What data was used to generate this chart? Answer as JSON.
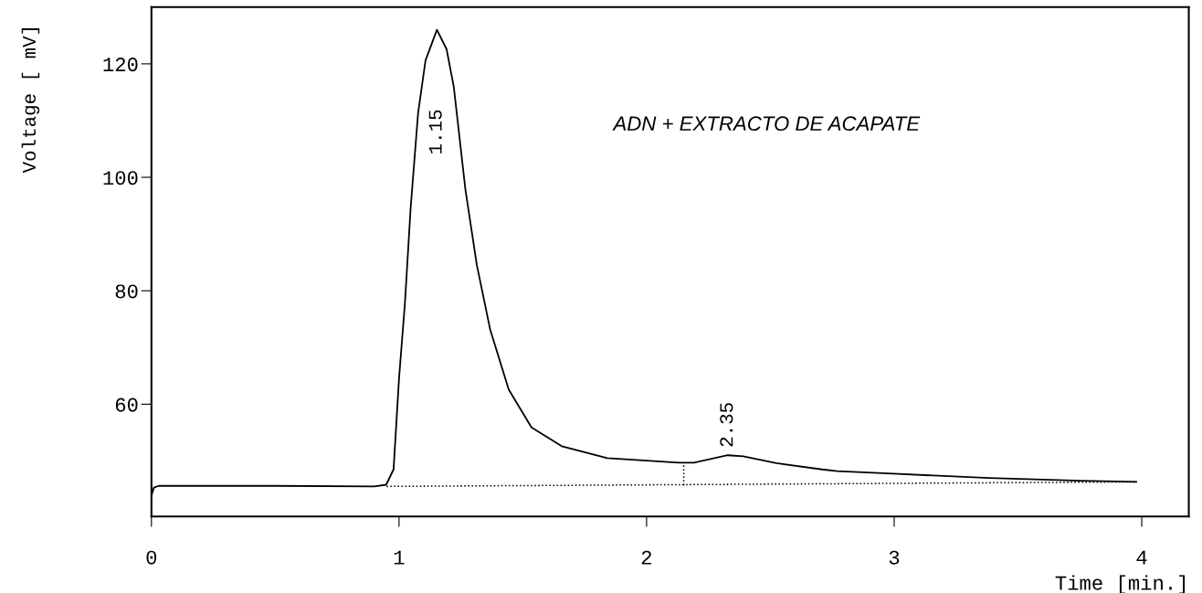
{
  "chart_data": {
    "type": "line",
    "xlabel": "Time [min.]",
    "ylabel": "Voltage [ mV]",
    "xlim": [
      0,
      4.19
    ],
    "ylim": [
      40.2,
      130
    ],
    "xticks": [
      0,
      1,
      2,
      3,
      4
    ],
    "yticks": [
      60,
      80,
      100,
      120
    ],
    "grid": false,
    "legend": false,
    "series": [
      {
        "color": "#000000",
        "line_style": "solid",
        "x": [
          0,
          0.01,
          0.03,
          0.5,
          0.9,
          0.948,
          0.978,
          1.0,
          1.024,
          1.047,
          1.077,
          1.107,
          1.153,
          1.192,
          1.221,
          1.268,
          1.314,
          1.368,
          1.443,
          1.535,
          1.657,
          1.841,
          2.131,
          2.192,
          2.328,
          2.39,
          2.524,
          2.709,
          2.77,
          3.015,
          3.384,
          3.753,
          3.978
        ],
        "values": [
          43.9,
          45.3,
          45.6,
          45.6,
          45.5,
          45.8,
          48.5,
          64.5,
          77.9,
          94.6,
          111.3,
          120.6,
          126.0,
          122.6,
          116.0,
          97.9,
          84.6,
          73.2,
          62.6,
          55.9,
          52.6,
          50.5,
          49.7,
          49.7,
          51.0,
          50.8,
          49.6,
          48.5,
          48.2,
          47.7,
          47.0,
          46.5,
          46.3
        ]
      },
      {
        "color": "#000000",
        "line_style": "dotted",
        "x": [
          0.95,
          3.98
        ],
        "values": [
          45.5,
          46.3
        ]
      },
      {
        "color": "#000000",
        "line_style": "dotted",
        "x": [
          2.15,
          2.15
        ],
        "values": [
          45.7,
          49.7
        ]
      }
    ],
    "annotations": [
      "1.15",
      {
        "text": "2.35",
        "x": 2.328,
        "y": 51.0
      },
      "ADN + EXTRACTO DE ACAPATE"
    ]
  }
}
